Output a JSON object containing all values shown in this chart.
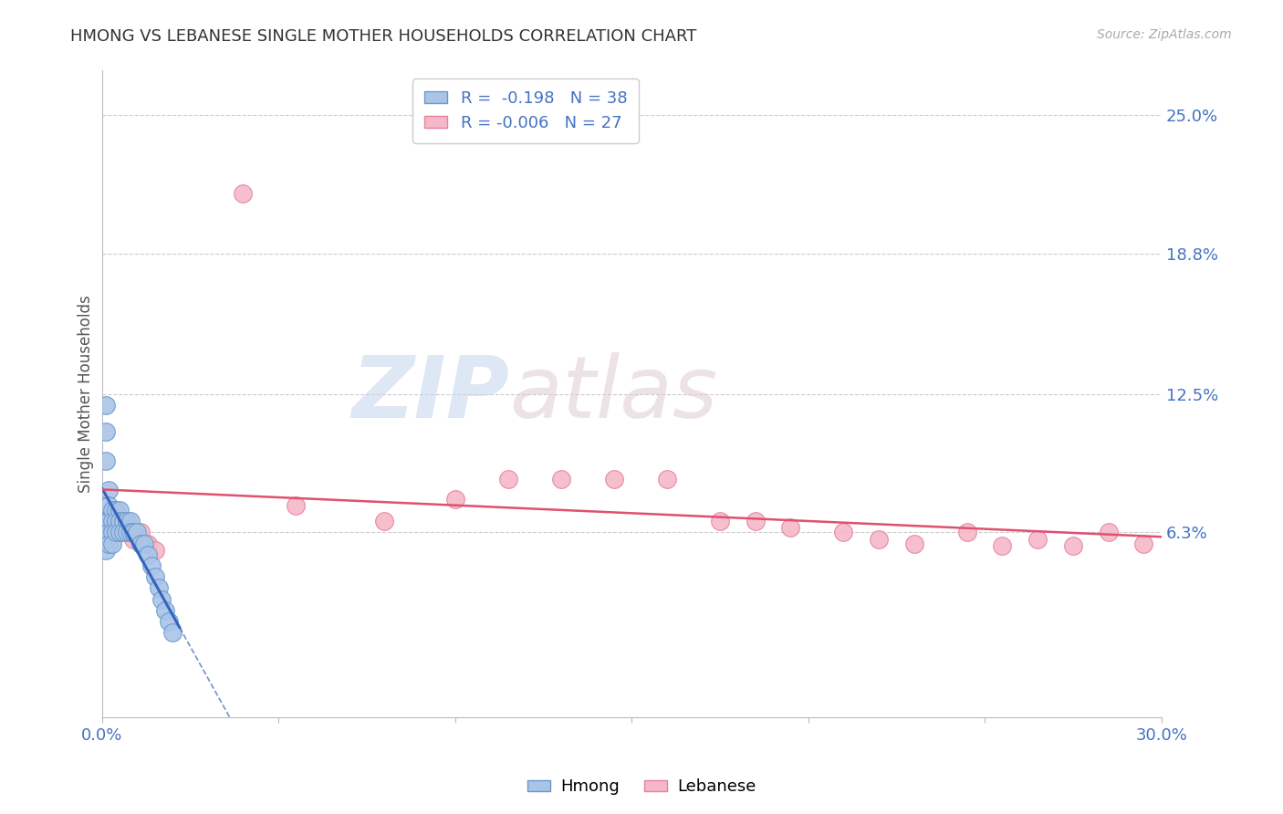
{
  "title": "HMONG VS LEBANESE SINGLE MOTHER HOUSEHOLDS CORRELATION CHART",
  "source": "Source: ZipAtlas.com",
  "ylabel": "Single Mother Households",
  "xlim": [
    0.0,
    0.3
  ],
  "ylim": [
    -0.02,
    0.27
  ],
  "xticks": [
    0.0,
    0.05,
    0.1,
    0.15,
    0.2,
    0.25,
    0.3
  ],
  "xticklabels": [
    "0.0%",
    "",
    "",
    "",
    "",
    "",
    "30.0%"
  ],
  "ytick_positions": [
    0.063,
    0.125,
    0.188,
    0.25
  ],
  "ytick_labels": [
    "6.3%",
    "12.5%",
    "18.8%",
    "25.0%"
  ],
  "hmong_color": "#aac4e8",
  "hmong_edge_color": "#6699cc",
  "lebanese_color": "#f5b8c8",
  "lebanese_edge_color": "#e8809a",
  "hmong_R": -0.198,
  "hmong_N": 38,
  "lebanese_R": -0.006,
  "lebanese_N": 27,
  "hmong_x": [
    0.001,
    0.001,
    0.001,
    0.001,
    0.001,
    0.002,
    0.002,
    0.002,
    0.002,
    0.002,
    0.003,
    0.003,
    0.003,
    0.003,
    0.004,
    0.004,
    0.004,
    0.005,
    0.005,
    0.005,
    0.006,
    0.006,
    0.007,
    0.007,
    0.008,
    0.008,
    0.009,
    0.01,
    0.011,
    0.012,
    0.013,
    0.014,
    0.015,
    0.016,
    0.017,
    0.018,
    0.019,
    0.02
  ],
  "hmong_y": [
    0.12,
    0.108,
    0.095,
    0.068,
    0.055,
    0.082,
    0.075,
    0.068,
    0.063,
    0.058,
    0.073,
    0.068,
    0.063,
    0.058,
    0.073,
    0.068,
    0.063,
    0.073,
    0.068,
    0.063,
    0.068,
    0.063,
    0.068,
    0.063,
    0.068,
    0.063,
    0.063,
    0.063,
    0.058,
    0.058,
    0.053,
    0.048,
    0.043,
    0.038,
    0.033,
    0.028,
    0.023,
    0.018
  ],
  "lebanese_x": [
    0.003,
    0.005,
    0.007,
    0.009,
    0.011,
    0.013,
    0.015,
    0.04,
    0.055,
    0.08,
    0.1,
    0.115,
    0.13,
    0.145,
    0.16,
    0.175,
    0.185,
    0.195,
    0.21,
    0.22,
    0.23,
    0.245,
    0.255,
    0.265,
    0.275,
    0.285,
    0.295
  ],
  "lebanese_y": [
    0.068,
    0.063,
    0.065,
    0.06,
    0.063,
    0.058,
    0.055,
    0.215,
    0.075,
    0.068,
    0.078,
    0.087,
    0.087,
    0.087,
    0.087,
    0.068,
    0.068,
    0.065,
    0.063,
    0.06,
    0.058,
    0.063,
    0.057,
    0.06,
    0.057,
    0.063,
    0.058
  ],
  "watermark_zip": "ZIP",
  "watermark_atlas": "atlas",
  "background_color": "#ffffff",
  "grid_color": "#cccccc",
  "right_tick_color": "#4472c4",
  "line_hmong_color": "#3366bb",
  "line_leb_color": "#e05070",
  "legend_color": "#4472c4"
}
